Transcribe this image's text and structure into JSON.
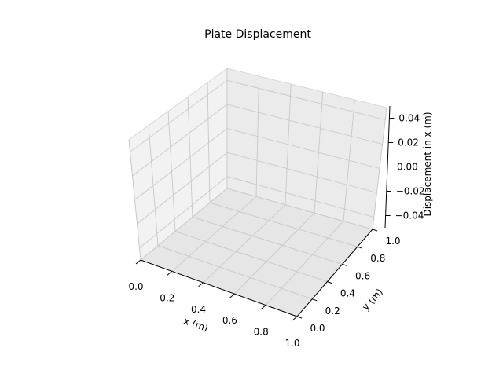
{
  "chart_data": {
    "type": "surface",
    "title": "Plate Displacement",
    "xlabel": "x (m)",
    "ylabel": "y (m)",
    "zlabel": "Displacement in x (m)",
    "xlim": [
      0.0,
      1.0
    ],
    "ylim": [
      0.0,
      1.0
    ],
    "zlim": [
      -0.05,
      0.05
    ],
    "x_ticks": [
      "0.0",
      "0.2",
      "0.4",
      "0.6",
      "0.8",
      "1.0"
    ],
    "y_ticks": [
      "0.0",
      "0.2",
      "0.4",
      "0.6",
      "0.8",
      "1.0"
    ],
    "z_ticks": [
      "−0.04",
      "−0.02",
      "0.00",
      "0.02",
      "0.04"
    ],
    "grid": true,
    "series": []
  }
}
